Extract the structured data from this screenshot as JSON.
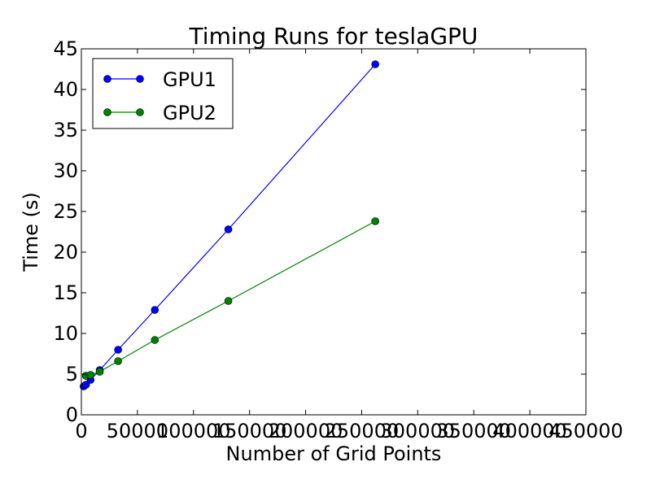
{
  "chart_data": {
    "type": "line",
    "title": "Timing Runs for teslaGPU",
    "xlabel": "Number of Grid Points",
    "ylabel": "Time (s)",
    "xlim": [
      0,
      450000
    ],
    "ylim": [
      0,
      45
    ],
    "xticks": [
      0,
      50000,
      100000,
      150000,
      200000,
      250000,
      300000,
      350000,
      400000,
      450000
    ],
    "xtick_labels": [
      "0",
      "50000",
      "100000",
      "150000",
      "200000",
      "250000",
      "300000",
      "350000",
      "400000",
      "450000"
    ],
    "yticks": [
      0,
      5,
      10,
      15,
      20,
      25,
      30,
      35,
      40,
      45
    ],
    "ytick_labels": [
      "0",
      "5",
      "10",
      "15",
      "20",
      "25",
      "30",
      "35",
      "40",
      "45"
    ],
    "grid": false,
    "legend_position": "top-left",
    "series": [
      {
        "name": "GPU1",
        "color": "#0000ff",
        "x": [
          2048,
          4096,
          8192,
          16384,
          32768,
          65536,
          131072,
          262144
        ],
        "y": [
          3.5,
          3.7,
          4.3,
          5.5,
          8.0,
          12.9,
          22.8,
          43.1
        ]
      },
      {
        "name": "GPU2",
        "color": "#008000",
        "x": [
          4096,
          8192,
          16384,
          32768,
          65536,
          131072,
          262144
        ],
        "y": [
          4.8,
          4.9,
          5.3,
          6.6,
          9.2,
          14.0,
          23.8
        ]
      }
    ]
  }
}
